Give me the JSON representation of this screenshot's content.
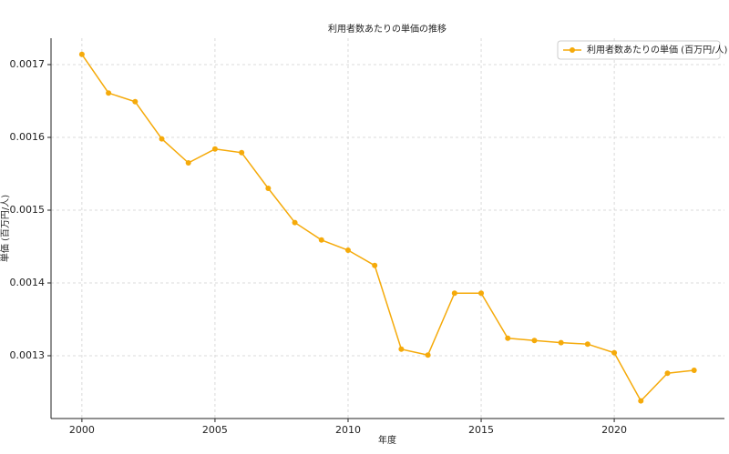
{
  "chart_data": {
    "type": "line",
    "title": "利用者数あたりの単価の推移",
    "x_label": "年度",
    "y_label": "単価 (百万円/人)",
    "x": [
      2000,
      2001,
      2002,
      2003,
      2004,
      2005,
      2006,
      2007,
      2008,
      2009,
      2010,
      2011,
      2012,
      2013,
      2014,
      2015,
      2016,
      2017,
      2018,
      2019,
      2020,
      2021,
      2022,
      2023
    ],
    "series": [
      {
        "name": "利用者数あたりの単価 (百万円/人)",
        "color": "#f5aa0a",
        "values": [
          0.001714,
          0.001661,
          0.001649,
          0.001598,
          0.001565,
          0.001584,
          0.001579,
          0.00153,
          0.001483,
          0.001459,
          0.001445,
          0.001424,
          0.001309,
          0.001301,
          0.001386,
          0.001386,
          0.001324,
          0.001321,
          0.001318,
          0.001316,
          0.001304,
          0.001238,
          0.001276,
          0.00128
        ]
      }
    ],
    "xlim": [
      1998.84,
      2024.14
    ],
    "xticks": [
      2000,
      2005,
      2010,
      2015,
      2020
    ],
    "ylim": [
      0.00121375,
      0.00173625
    ],
    "yticks": [
      0.0013,
      0.0014,
      0.0015,
      0.0016,
      0.0017
    ],
    "grid": true,
    "legend": "upper right"
  }
}
